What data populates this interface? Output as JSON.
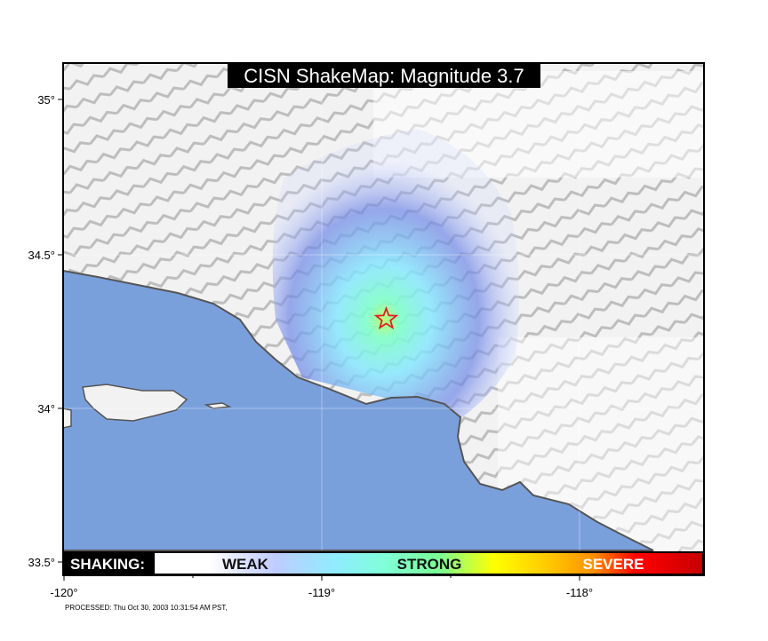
{
  "title": "CISN ShakeMap: Magnitude 3.7",
  "axes": {
    "lon_ticks": [
      "-120°",
      "-119°",
      "-118°"
    ],
    "lat_ticks": [
      "35°",
      "34.5°",
      "34°",
      "33.5°"
    ],
    "lon_range": [
      -120,
      -117.5
    ],
    "lat_range": [
      33.5,
      35.1
    ]
  },
  "epicenter": {
    "lon": -118.75,
    "lat": 34.29,
    "icon": "star-icon",
    "color": "#e02020"
  },
  "legend": {
    "label": "SHAKING:",
    "weak": "WEAK",
    "strong": "STRONG",
    "severe": "SEVERE",
    "colors": [
      "#ffffff",
      "#bfccff",
      "#a0e6ff",
      "#80ffff",
      "#7aff93",
      "#ffff00",
      "#ffc800",
      "#ff9100",
      "#ff0000",
      "#c80000"
    ]
  },
  "colors": {
    "ocean": "#7aa0dc",
    "land": "#f2f2f2"
  },
  "processed": "PROCESSED: Thu Oct 30, 2003 10:31:54 AM PST,"
}
